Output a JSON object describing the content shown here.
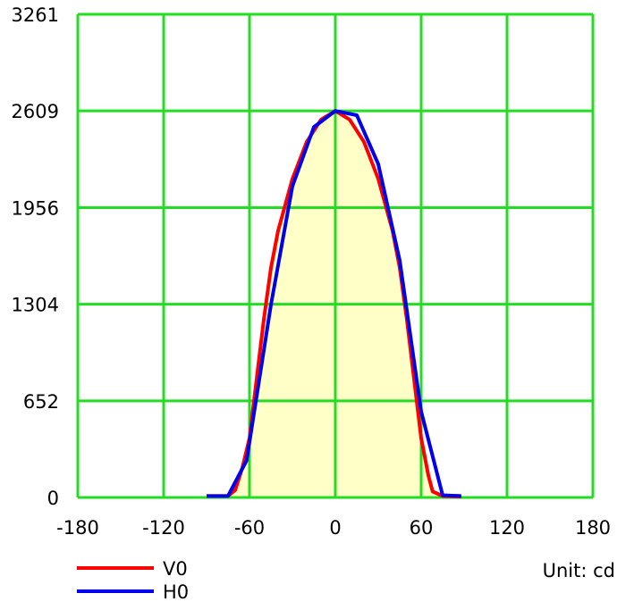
{
  "chart_data": {
    "type": "line",
    "unit_label": "Unit: cd",
    "x_ticks": [
      "-180",
      "-120",
      "-60",
      "0",
      "60",
      "120",
      "180"
    ],
    "y_ticks": [
      "0",
      "652",
      "1304",
      "1956",
      "2609",
      "3261"
    ],
    "xlim": [
      -180,
      180
    ],
    "ylim": [
      0,
      3261
    ],
    "grid": true,
    "grid_color": "#22dd22",
    "fill_color": "#ffffc8",
    "legend_position": "bottom-left",
    "series": [
      {
        "name": "V0",
        "color": "#ff0000",
        "points": [
          [
            -90,
            10
          ],
          [
            -75,
            10
          ],
          [
            -70,
            50
          ],
          [
            -65,
            200
          ],
          [
            -60,
            400
          ],
          [
            -55,
            800
          ],
          [
            -50,
            1200
          ],
          [
            -45,
            1550
          ],
          [
            -40,
            1800
          ],
          [
            -30,
            2150
          ],
          [
            -20,
            2400
          ],
          [
            -10,
            2550
          ],
          [
            0,
            2609
          ],
          [
            10,
            2550
          ],
          [
            20,
            2400
          ],
          [
            30,
            2150
          ],
          [
            40,
            1800
          ],
          [
            45,
            1550
          ],
          [
            50,
            1200
          ],
          [
            55,
            800
          ],
          [
            60,
            400
          ],
          [
            65,
            150
          ],
          [
            68,
            40
          ],
          [
            75,
            10
          ],
          [
            88,
            5
          ]
        ]
      },
      {
        "name": "H0",
        "color": "#0000ee",
        "points": [
          [
            -90,
            10
          ],
          [
            -75,
            10
          ],
          [
            -62,
            250
          ],
          [
            -45,
            1300
          ],
          [
            -30,
            2100
          ],
          [
            -15,
            2500
          ],
          [
            0,
            2609
          ],
          [
            15,
            2580
          ],
          [
            30,
            2250
          ],
          [
            45,
            1600
          ],
          [
            60,
            580
          ],
          [
            75,
            15
          ],
          [
            88,
            10
          ]
        ]
      }
    ]
  }
}
